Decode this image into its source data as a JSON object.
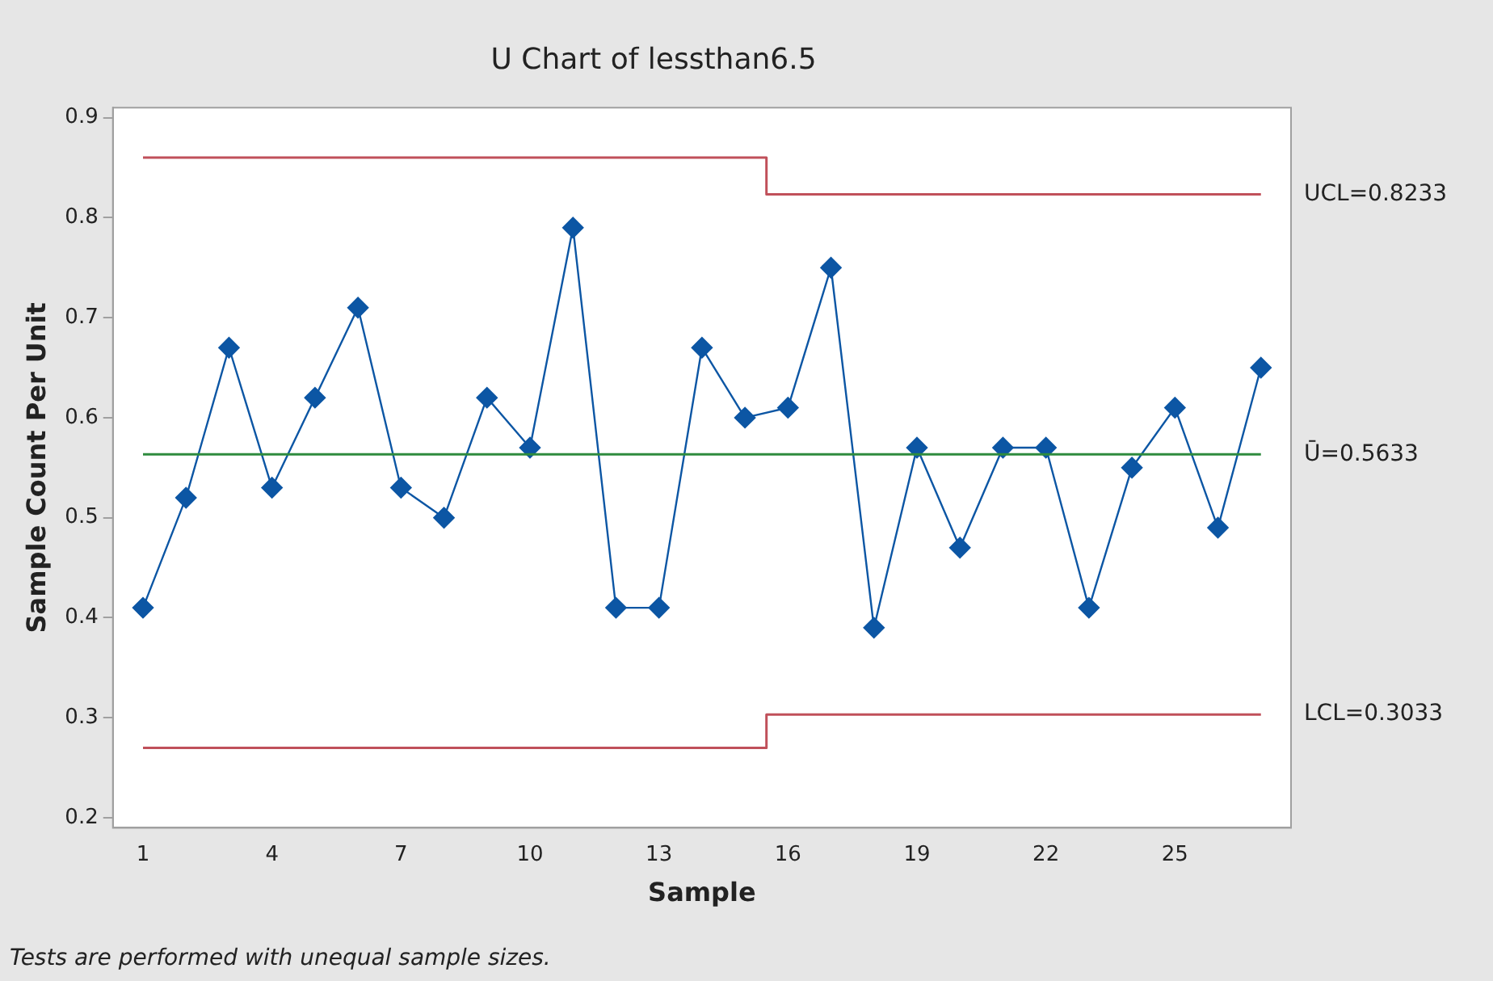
{
  "chart_data": {
    "type": "line",
    "title": "U Chart of lessthan6.5",
    "xlabel": "Sample",
    "ylabel": "Sample Count Per Unit",
    "x": [
      1,
      2,
      3,
      4,
      5,
      6,
      7,
      8,
      9,
      10,
      11,
      12,
      13,
      14,
      15,
      16,
      17,
      18,
      19,
      20,
      21,
      22,
      23,
      24,
      25,
      26,
      27
    ],
    "series": [
      {
        "color": "#0c56a4",
        "values": [
          0.41,
          0.52,
          0.67,
          0.53,
          0.62,
          0.71,
          0.53,
          0.5,
          0.62,
          0.57,
          0.79,
          0.41,
          0.41,
          0.67,
          0.6,
          0.61,
          0.75,
          0.39,
          0.57,
          0.47,
          0.57,
          0.57,
          0.41,
          0.55,
          0.61,
          0.49,
          0.65
        ]
      },
      {
        "name": "UCL=0.8233",
        "type": "step",
        "marker": "none",
        "color": "#c0505a",
        "x": [
          1,
          15.5,
          27
        ],
        "values": [
          0.86,
          0.8233,
          0.8233
        ]
      },
      {
        "name": "LCL=0.3033",
        "type": "step",
        "marker": "none",
        "color": "#c0505a",
        "x": [
          1,
          15.5,
          27
        ],
        "values": [
          0.27,
          0.3033,
          0.3033
        ]
      }
    ],
    "ref_lines": [
      {
        "axis": "y",
        "value": 0.5633,
        "label": "Ū=0.5633",
        "color": "#2e8b3e"
      }
    ],
    "annotations": [
      "Tests are performed with unequal sample sizes."
    ],
    "xlim": [
      0.3,
      27.7
    ],
    "xticks": [
      1,
      4,
      7,
      10,
      13,
      16,
      19,
      22,
      25
    ],
    "ylim": [
      0.19,
      0.91
    ],
    "yticks": [
      0.2,
      0.3,
      0.4,
      0.5,
      0.6,
      0.7,
      0.8,
      0.9
    ],
    "grid": false,
    "legend": false,
    "marker": "diamond",
    "line_style": "solid"
  }
}
